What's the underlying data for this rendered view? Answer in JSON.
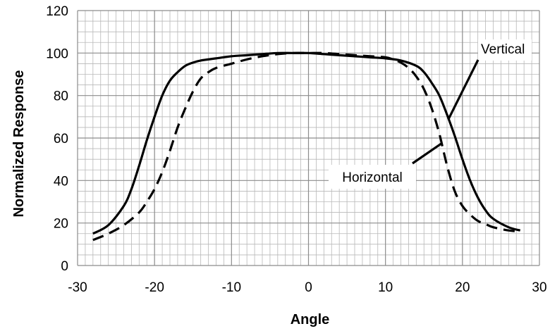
{
  "chart_data": {
    "type": "line",
    "title": "",
    "xlabel": "Angle",
    "ylabel": "Normalized Response",
    "xlim": [
      -30,
      30
    ],
    "ylim": [
      0,
      120
    ],
    "x_ticks": [
      -30,
      -20,
      -10,
      0,
      10,
      20,
      30
    ],
    "y_ticks": [
      0,
      20,
      40,
      60,
      80,
      100,
      120
    ],
    "grid": true,
    "legend": "none",
    "series": [
      {
        "name": "Vertical",
        "style": "solid",
        "color": "#000000",
        "x": [
          -28,
          -26,
          -24,
          -23,
          -22,
          -21,
          -20,
          -19,
          -18,
          -17,
          -16,
          -15,
          -14,
          -12,
          -10,
          -8,
          -6,
          -4,
          -2,
          0,
          2,
          4,
          6,
          8,
          10,
          12,
          14,
          15,
          16,
          17,
          18,
          19,
          20,
          21,
          22,
          23,
          24,
          26,
          27.5
        ],
        "y": [
          15,
          19,
          28,
          36,
          47,
          59,
          70,
          80,
          87,
          91,
          94,
          95.5,
          96.5,
          97.5,
          98.5,
          99,
          99.5,
          100,
          100,
          100,
          99.5,
          99,
          98.5,
          98,
          97.5,
          96.5,
          94,
          91,
          86,
          80,
          71,
          61,
          50,
          40,
          32,
          26,
          22,
          18,
          16.5
        ]
      },
      {
        "name": "Horizontal",
        "style": "dashed",
        "color": "#000000",
        "x": [
          -28,
          -26,
          -24,
          -22,
          -21,
          -20,
          -19,
          -18,
          -17,
          -16,
          -15,
          -14,
          -13,
          -12,
          -10,
          -8,
          -6,
          -4,
          -2,
          0,
          2,
          4,
          6,
          8,
          10,
          11,
          12,
          13,
          14,
          15,
          16,
          17,
          18,
          19,
          20,
          21,
          22,
          23,
          24,
          26,
          27.5
        ],
        "y": [
          12,
          15,
          19,
          25,
          30,
          36,
          44,
          54,
          65,
          74,
          82,
          88,
          91,
          93,
          95,
          97,
          98.5,
          99.5,
          100,
          100,
          100,
          99.5,
          99,
          98.5,
          98,
          97,
          95.5,
          93,
          89,
          83,
          74,
          62,
          47,
          35,
          28,
          24,
          21,
          19.5,
          18,
          16.5,
          16
        ]
      }
    ],
    "annotations": [
      {
        "text": "Vertical",
        "series": "Vertical"
      },
      {
        "text": "Horizontal",
        "series": "Horizontal"
      }
    ]
  }
}
